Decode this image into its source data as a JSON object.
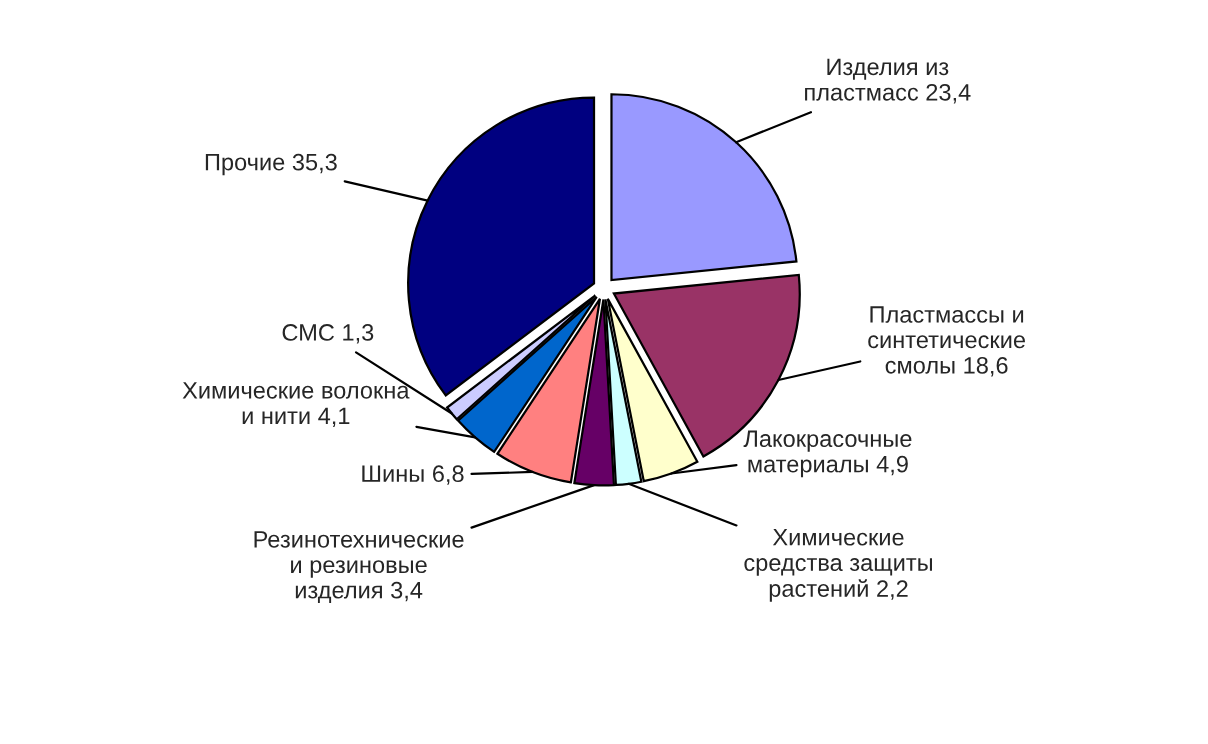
{
  "chart_data": {
    "type": "pie",
    "categories": [
      "Изделия из\nпластмасс",
      "Пластмассы и\nсинтетические\nсмолы",
      "Лакокрасочные\nматериалы",
      "Химические\nсредства защиты\nрастений",
      "Резинотехнические\nи резиновые\nизделия",
      "Шины",
      "Химические волокна\nи нити",
      "СМС",
      "Прочие"
    ],
    "values": [
      23.4,
      18.6,
      4.9,
      2.2,
      3.4,
      6.8,
      4.1,
      1.3,
      35.3
    ],
    "colors": [
      "#9999ff",
      "#993366",
      "#ffffcc",
      "#ccffff",
      "#660066",
      "#ff8080",
      "#0066cc",
      "#ccccff",
      "#000080"
    ],
    "value_labels": [
      "23,4",
      "18,6",
      "4,9",
      "2,2",
      "3,4",
      "6,8",
      "4,1",
      "1,3",
      "35,3"
    ]
  }
}
